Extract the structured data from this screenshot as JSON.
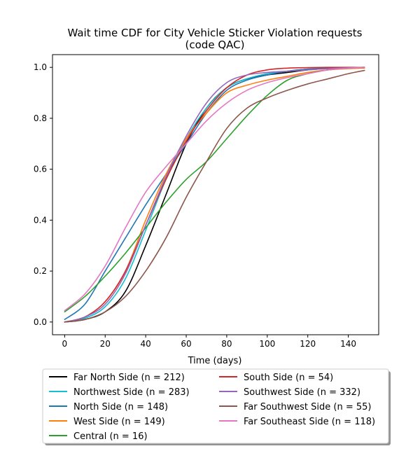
{
  "chart_data": {
    "type": "line",
    "title_line1": "Wait time CDF for City Vehicle Sticker Violation  requests",
    "title_line2": "(code QAC)",
    "xlabel": "Time (days)",
    "ylabel": "",
    "xlim": [
      -6,
      155
    ],
    "ylim": [
      -0.05,
      1.05
    ],
    "xticks": [
      0,
      20,
      40,
      60,
      80,
      100,
      120,
      140
    ],
    "yticks": [
      0.0,
      0.2,
      0.4,
      0.6,
      0.8,
      1.0
    ],
    "xtick_labels": [
      "0",
      "20",
      "40",
      "60",
      "80",
      "100",
      "120",
      "140"
    ],
    "ytick_labels": [
      "0.0",
      "0.2",
      "0.4",
      "0.6",
      "0.8",
      "1.0"
    ],
    "grid": false,
    "legend_position": "below-plot",
    "series": [
      {
        "name": "Far North Side (n = 212)",
        "color": "#000000",
        "x": [
          0,
          10,
          20,
          30,
          40,
          50,
          60,
          70,
          80,
          90,
          100,
          110,
          120,
          130,
          140,
          148
        ],
        "y": [
          0.0,
          0.01,
          0.04,
          0.12,
          0.3,
          0.5,
          0.7,
          0.84,
          0.92,
          0.955,
          0.97,
          0.98,
          0.99,
          0.995,
          0.998,
          1.0
        ]
      },
      {
        "name": "Northwest Side (n = 283)",
        "color": "#17becf",
        "x": [
          0,
          10,
          20,
          30,
          40,
          50,
          60,
          70,
          80,
          90,
          100,
          110,
          120,
          130,
          140,
          148
        ],
        "y": [
          0.0,
          0.015,
          0.06,
          0.17,
          0.36,
          0.56,
          0.72,
          0.84,
          0.92,
          0.955,
          0.975,
          0.985,
          0.993,
          0.997,
          0.999,
          1.0
        ]
      },
      {
        "name": "North Side (n = 148)",
        "color": "#1f77b4",
        "x": [
          0,
          10,
          20,
          30,
          40,
          50,
          60,
          70,
          80,
          90,
          100,
          110,
          120,
          130,
          140,
          148
        ],
        "y": [
          0.01,
          0.07,
          0.2,
          0.33,
          0.46,
          0.58,
          0.7,
          0.82,
          0.91,
          0.95,
          0.97,
          0.985,
          0.993,
          0.997,
          0.999,
          1.0
        ]
      },
      {
        "name": "West Side (n = 149)",
        "color": "#ff7f0e",
        "x": [
          0,
          10,
          20,
          30,
          40,
          50,
          60,
          70,
          80,
          90,
          100,
          110,
          120,
          130,
          140,
          148
        ],
        "y": [
          0.0,
          0.02,
          0.08,
          0.2,
          0.4,
          0.58,
          0.72,
          0.82,
          0.9,
          0.93,
          0.95,
          0.965,
          0.98,
          0.99,
          0.995,
          0.997
        ]
      },
      {
        "name": "Central (n = 16)",
        "color": "#2ca02c",
        "x": [
          0,
          10,
          20,
          30,
          40,
          50,
          60,
          70,
          80,
          90,
          100,
          110,
          120,
          130,
          140,
          148
        ],
        "y": [
          0.04,
          0.1,
          0.18,
          0.27,
          0.37,
          0.47,
          0.56,
          0.63,
          0.72,
          0.81,
          0.89,
          0.95,
          0.975,
          0.99,
          0.997,
          1.0
        ]
      },
      {
        "name": "South Side (n = 54)",
        "color": "#d62728",
        "x": [
          0,
          10,
          20,
          30,
          40,
          50,
          60,
          70,
          80,
          90,
          100,
          110,
          120,
          130,
          140,
          148
        ],
        "y": [
          0.0,
          0.02,
          0.08,
          0.2,
          0.38,
          0.56,
          0.71,
          0.83,
          0.92,
          0.97,
          0.99,
          0.997,
          0.999,
          1.0,
          1.0,
          1.0
        ]
      },
      {
        "name": "Southwest Side (n = 332)",
        "color": "#9467bd",
        "x": [
          0,
          10,
          20,
          30,
          40,
          50,
          60,
          70,
          80,
          90,
          100,
          110,
          120,
          130,
          140,
          148
        ],
        "y": [
          0.0,
          0.02,
          0.07,
          0.19,
          0.38,
          0.57,
          0.73,
          0.86,
          0.94,
          0.97,
          0.98,
          0.985,
          0.99,
          0.995,
          0.998,
          1.0
        ]
      },
      {
        "name": "Far Southwest Side (n = 55)",
        "color": "#8c564b",
        "x": [
          0,
          10,
          20,
          30,
          40,
          50,
          60,
          70,
          80,
          90,
          100,
          110,
          120,
          130,
          140,
          148
        ],
        "y": [
          0.0,
          0.01,
          0.04,
          0.1,
          0.2,
          0.33,
          0.49,
          0.63,
          0.76,
          0.84,
          0.88,
          0.91,
          0.935,
          0.955,
          0.975,
          0.988
        ]
      },
      {
        "name": "Far Southeast Side (n = 118)",
        "color": "#e377c2",
        "x": [
          0,
          10,
          20,
          30,
          40,
          50,
          60,
          70,
          80,
          90,
          100,
          110,
          120,
          130,
          140,
          148
        ],
        "y": [
          0.045,
          0.11,
          0.22,
          0.37,
          0.51,
          0.61,
          0.7,
          0.79,
          0.86,
          0.91,
          0.94,
          0.96,
          0.975,
          0.99,
          0.997,
          1.0
        ]
      }
    ]
  }
}
